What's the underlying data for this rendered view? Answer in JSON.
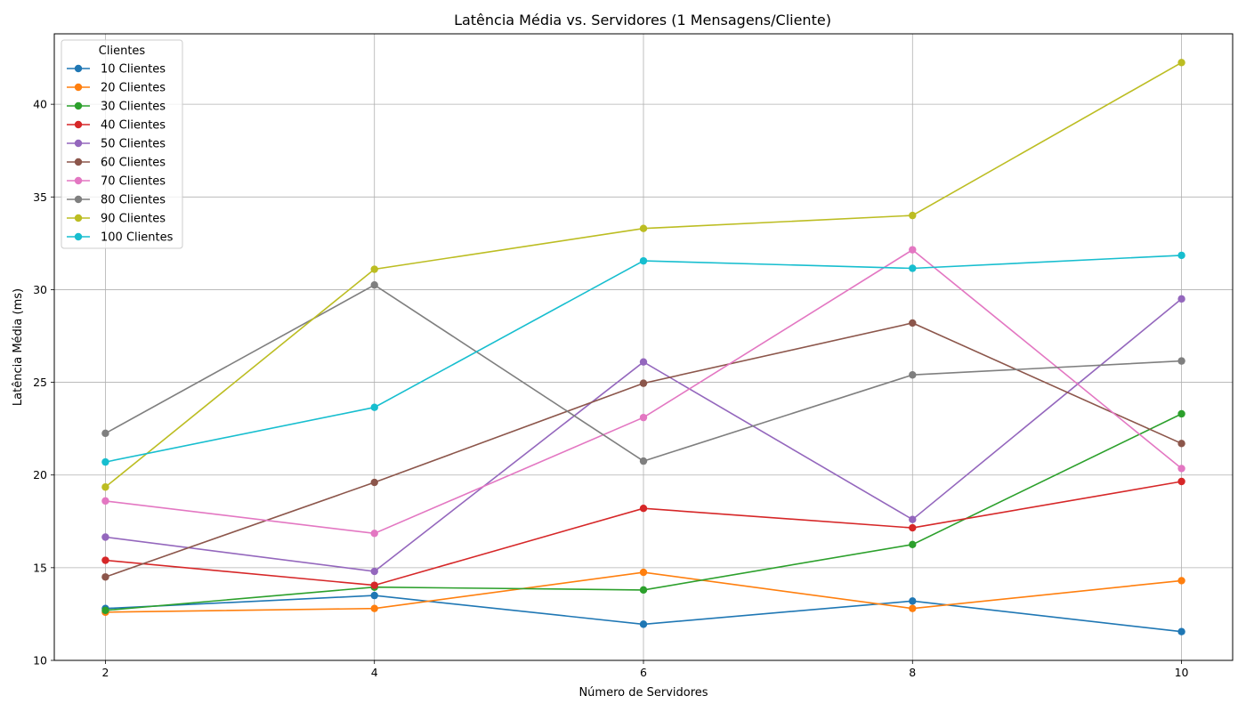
{
  "chart_data": {
    "type": "line",
    "title": "Latência Média vs. Servidores (1 Mensagens/Cliente)",
    "xlabel": "Número de Servidores",
    "ylabel": "Latência Média (ms)",
    "x": [
      2,
      4,
      6,
      8,
      10
    ],
    "xticks": [
      "2",
      "4",
      "6",
      "8",
      "10"
    ],
    "yticks": [
      "10",
      "15",
      "20",
      "25",
      "30",
      "35",
      "40"
    ],
    "xlim": [
      1.62,
      10.38
    ],
    "ylim": [
      10,
      43.8
    ],
    "grid": true,
    "legend": {
      "title": "Clientes",
      "placement": "top-left"
    },
    "series": [
      {
        "name": "10 Clientes",
        "color": "#1f77b4",
        "values": [
          12.8,
          13.5,
          11.95,
          13.2,
          11.55
        ]
      },
      {
        "name": "20 Clientes",
        "color": "#ff7f0e",
        "values": [
          12.6,
          12.8,
          14.75,
          12.8,
          14.3
        ]
      },
      {
        "name": "30 Clientes",
        "color": "#2ca02c",
        "values": [
          12.7,
          13.95,
          13.8,
          16.25,
          23.3
        ]
      },
      {
        "name": "40 Clientes",
        "color": "#d62728",
        "values": [
          15.4,
          14.05,
          18.2,
          17.15,
          19.65
        ]
      },
      {
        "name": "50 Clientes",
        "color": "#9467bd",
        "values": [
          16.65,
          14.8,
          26.1,
          17.6,
          29.5
        ]
      },
      {
        "name": "60 Clientes",
        "color": "#8c564b",
        "values": [
          14.5,
          19.6,
          24.95,
          28.2,
          21.7
        ]
      },
      {
        "name": "70 Clientes",
        "color": "#e377c2",
        "values": [
          18.6,
          16.85,
          23.1,
          32.15,
          20.35
        ]
      },
      {
        "name": "80 Clientes",
        "color": "#7f7f7f",
        "values": [
          22.25,
          30.25,
          20.75,
          25.4,
          26.15
        ]
      },
      {
        "name": "90 Clientes",
        "color": "#bcbd22",
        "values": [
          19.35,
          31.1,
          33.3,
          34.0,
          42.25
        ]
      },
      {
        "name": "100 Clientes",
        "color": "#17becf",
        "values": [
          20.7,
          23.65,
          31.55,
          31.15,
          31.85
        ]
      }
    ]
  }
}
